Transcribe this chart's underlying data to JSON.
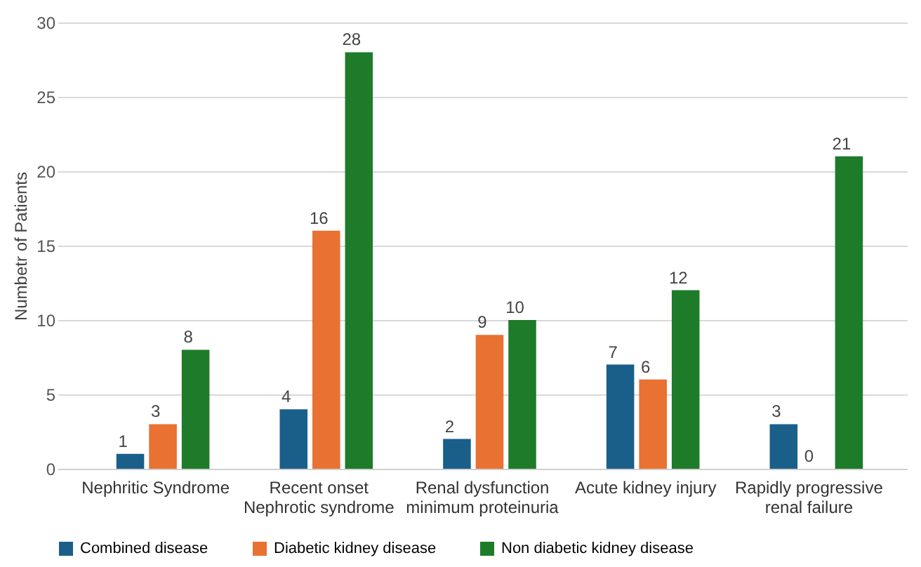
{
  "chart_data": {
    "type": "bar",
    "ylabel": "Numbetr of Patients",
    "categories": [
      "Nephritic Syndrome",
      "Recent onset\nNephrotic syndrome",
      "Renal dysfunction\nminimum proteinuria",
      "Acute kidney injury",
      "Rapidly progressive\nrenal failure"
    ],
    "series": [
      {
        "name": "Combined disease",
        "color": "#1a5f8a",
        "values": [
          1,
          4,
          2,
          7,
          3
        ]
      },
      {
        "name": "Diabetic kidney disease",
        "color": "#e97132",
        "values": [
          3,
          16,
          9,
          6,
          0
        ]
      },
      {
        "name": "Non diabetic kidney disease",
        "color": "#1e7b2a",
        "values": [
          8,
          28,
          10,
          12,
          21
        ]
      }
    ],
    "ylim": [
      0,
      30
    ],
    "yticks": [
      0,
      5,
      10,
      15,
      20,
      25,
      30
    ],
    "grid": "y",
    "legend": "bottom",
    "data_labels": true
  }
}
